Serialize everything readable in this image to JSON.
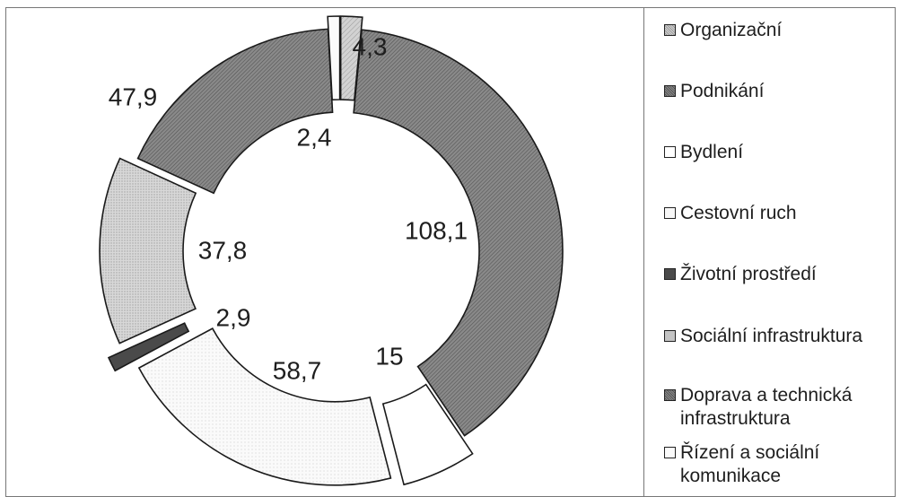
{
  "chart_data": {
    "type": "pie",
    "variant": "exploded donut",
    "title": "",
    "legend_position": "right",
    "slices": [
      {
        "label": "Organizační",
        "value": 4.3,
        "value_text": "4,3",
        "fill": "#c8c8c8",
        "pattern": "hatch-light"
      },
      {
        "label": "Podnikání",
        "value": 108.1,
        "value_text": "108,1",
        "fill": "#777777",
        "pattern": "hatch-dark"
      },
      {
        "label": "Bydlení",
        "value": 15,
        "value_text": "15",
        "fill": "#ffffff",
        "pattern": "none"
      },
      {
        "label": "Cestovní ruch",
        "value": 58.7,
        "value_text": "58,7",
        "fill": "#f7f7f7",
        "pattern": "dots-light"
      },
      {
        "label": "Životní prostředí",
        "value": 2.9,
        "value_text": "2,9",
        "fill": "#4a4a4a",
        "pattern": "solid-dark"
      },
      {
        "label": "Sociální infrastruktura",
        "value": 37.8,
        "value_text": "37,8",
        "fill": "#cfcfcf",
        "pattern": "dots-medium"
      },
      {
        "label": "Doprava a technická infrastruktura",
        "value": 47.9,
        "value_text": "47,9",
        "fill": "#7e7e7e",
        "pattern": "hatch-dark"
      },
      {
        "label": "Řízení a sociální komunikace",
        "value": 2.4,
        "value_text": "2,4",
        "fill": "#fbfbfb",
        "pattern": "none"
      }
    ]
  }
}
